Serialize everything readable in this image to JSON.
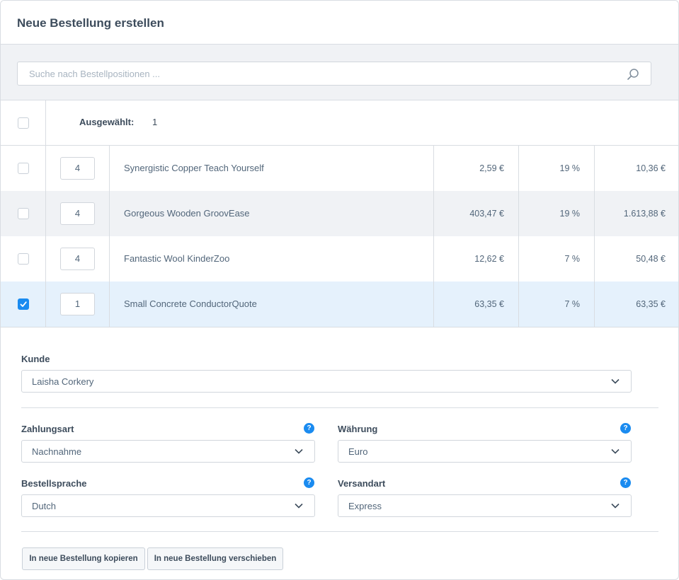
{
  "header": {
    "title": "Neue Bestellung erstellen"
  },
  "search": {
    "placeholder": "Suche nach Bestellpositionen ..."
  },
  "grid": {
    "selected_label": "Ausgewählt:",
    "selected_count": "1",
    "rows": [
      {
        "checked": false,
        "qty": "4",
        "name": "Synergistic Copper Teach Yourself",
        "price": "2,59 €",
        "tax": "19 %",
        "total": "10,36 €"
      },
      {
        "checked": false,
        "qty": "4",
        "name": "Gorgeous Wooden GroovEase",
        "price": "403,47 €",
        "tax": "19 %",
        "total": "1.613,88 €"
      },
      {
        "checked": false,
        "qty": "4",
        "name": "Fantastic Wool KinderZoo",
        "price": "12,62 €",
        "tax": "7 %",
        "total": "50,48 €"
      },
      {
        "checked": true,
        "qty": "1",
        "name": "Small Concrete ConductorQuote",
        "price": "63,35 €",
        "tax": "7 %",
        "total": "63,35 €"
      }
    ]
  },
  "form": {
    "customer": {
      "label": "Kunde",
      "value": "Laisha Corkery"
    },
    "payment": {
      "label": "Zahlungsart",
      "value": "Nachnahme"
    },
    "currency": {
      "label": "Währung",
      "value": "Euro"
    },
    "language": {
      "label": "Bestellsprache",
      "value": "Dutch"
    },
    "shipping": {
      "label": "Versandart",
      "value": "Express"
    },
    "help_glyph": "?"
  },
  "actions": {
    "copy_label": "In neue Bestellung kopieren",
    "move_label": "In neue Bestellung verschieben"
  },
  "colors": {
    "accent": "#1a8bf0",
    "selected_row": "#e5f1fc",
    "alt_row": "#f0f2f5"
  }
}
